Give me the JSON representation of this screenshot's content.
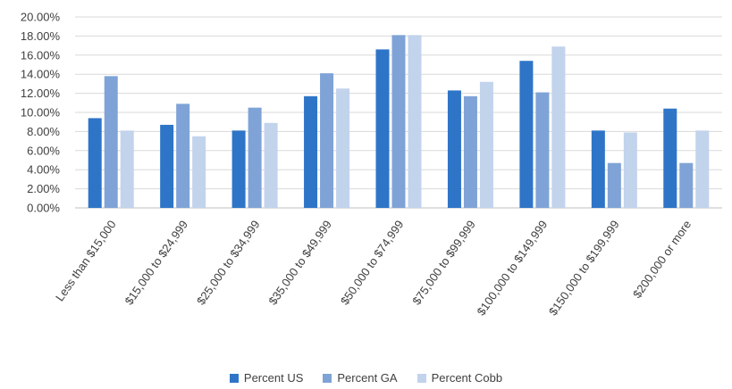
{
  "chart_data": {
    "type": "bar",
    "categories": [
      "Less than $15,000",
      "$15,000 to $24,999",
      "$25,000 to $34,999",
      "$35,000 to $49,999",
      "$50,000 to $74,999",
      "$75,000 to $99,999",
      "$100,000 to $149,999",
      "$150,000 to $199,999",
      "$200,000 or more"
    ],
    "series": [
      {
        "name": "Percent US",
        "color": "#2e75c8",
        "values": [
          9.4,
          8.7,
          8.1,
          11.7,
          16.6,
          12.3,
          15.4,
          8.1,
          10.4
        ]
      },
      {
        "name": "Percent GA",
        "color": "#7fa3d6",
        "values": [
          13.8,
          10.9,
          10.5,
          14.1,
          18.1,
          11.7,
          12.1,
          4.7,
          4.7
        ]
      },
      {
        "name": "Percent Cobb",
        "color": "#c2d3ec",
        "values": [
          8.1,
          7.5,
          8.9,
          12.5,
          18.1,
          13.2,
          16.9,
          7.9,
          8.1
        ]
      }
    ],
    "yticks": [
      "0.00%",
      "2.00%",
      "4.00%",
      "6.00%",
      "8.00%",
      "10.00%",
      "12.00%",
      "14.00%",
      "16.00%",
      "18.00%",
      "20.00%"
    ],
    "ylim": [
      0,
      20
    ],
    "grid": true,
    "legend_position": "bottom"
  }
}
